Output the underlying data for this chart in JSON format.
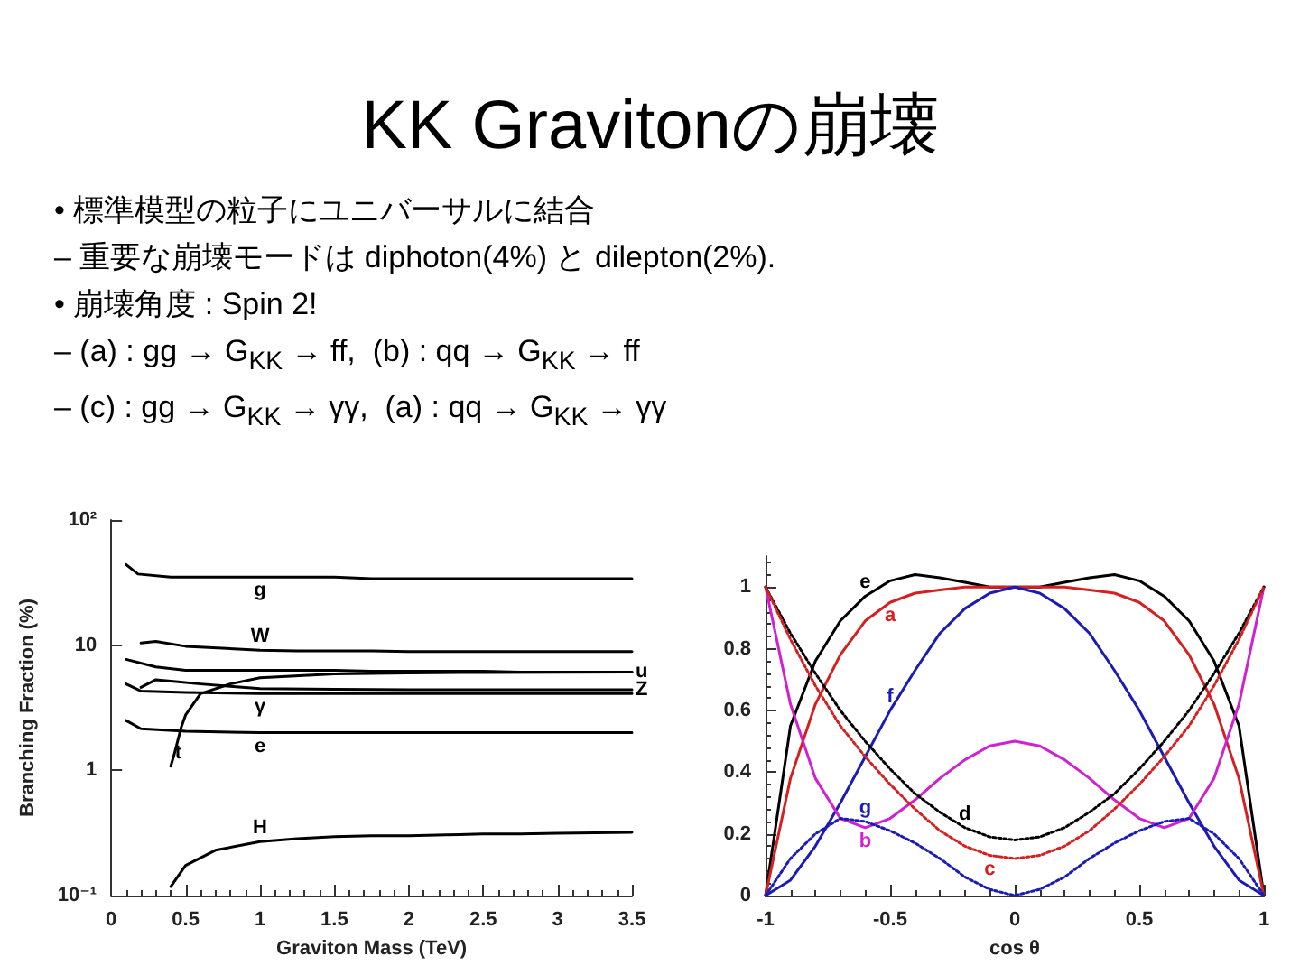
{
  "chart_data": [
    {
      "type": "line",
      "title": "KK Gravitonの崩壊",
      "annotations": [
        "• 標準模型の粒子にユニバーサルに結合",
        "– 重要な崩壊モードは diphoton(4%) と dilepton(2%).",
        "• 崩壊角度 : Spin 2!",
        "– (a) : gg → G$_{KK}$ → ff,  (b) : qq → G$_{KK}$ → ff",
        "– (c) : gg → G$_{KK}$ → γγ,  (a) : qq → G$_{KK}$ → γγ"
      ],
      "xlabel": "Graviton Mass (TeV)",
      "ylabel": "Branching Fraction (%)",
      "log": "y",
      "xlim": [
        0,
        3.5
      ],
      "xticks": [
        0,
        0.5,
        1,
        1.5,
        2,
        2.5,
        3,
        3.5
      ],
      "ylim": [
        0.1,
        100
      ],
      "yticks": [
        {
          "value": 0.1,
          "label": "10⁻¹"
        },
        1,
        10,
        {
          "value": 100,
          "label": "10²"
        }
      ],
      "grid": false,
      "legend": false,
      "marker": "none",
      "series": [
        {
          "name": "g",
          "color": "#000000",
          "x": [
            0.1,
            0.18,
            0.4,
            1,
            1.25,
            1.5,
            1.75,
            2,
            2.25,
            2.5,
            2.75,
            3,
            3.5
          ],
          "values": [
            44,
            37,
            35,
            35,
            35,
            35,
            34,
            34,
            34,
            34,
            34,
            34,
            34
          ]
        },
        {
          "name": "W",
          "color": "#000000",
          "x": [
            0.2,
            0.3,
            0.5,
            1,
            1.25,
            1.5,
            1.75,
            2,
            2.25,
            2.5,
            2.75,
            3,
            3.5
          ],
          "values": [
            10.4,
            10.7,
            9.8,
            9.1,
            9,
            9,
            9,
            8.9,
            8.9,
            8.9,
            8.9,
            8.9,
            8.9
          ]
        },
        {
          "name": "u",
          "color": "#000000",
          "x": [
            0.1,
            0.3,
            0.5,
            1,
            1.25,
            1.5,
            1.75,
            2,
            2.25,
            2.5,
            2.75,
            3,
            3.5
          ],
          "values": [
            7.7,
            6.7,
            6.3,
            6.3,
            6.3,
            6.3,
            6.2,
            6.2,
            6.2,
            6.2,
            6.1,
            6.1,
            6.1
          ]
        },
        {
          "name": "Z",
          "color": "#000000",
          "x": [
            0.2,
            0.3,
            0.45,
            0.6,
            0.8,
            1,
            1.5,
            2,
            2.5,
            2.75,
            3,
            3.25,
            3.5
          ],
          "values": [
            4.6,
            5.3,
            5.1,
            4.9,
            4.7,
            4.5,
            4.45,
            4.4,
            4.4,
            4.4,
            4.4,
            4.4,
            4.4
          ]
        },
        {
          "name": "γ",
          "color": "#000000",
          "x": [
            0.1,
            0.2,
            0.5,
            1,
            1.25,
            1.5,
            1.75,
            2,
            2.25,
            2.5,
            2.75,
            3,
            3.5
          ],
          "values": [
            4.9,
            4.3,
            4.2,
            4.1,
            4.1,
            4.1,
            4.1,
            4.1,
            4.1,
            4.1,
            4.1,
            4.1,
            4.1
          ]
        },
        {
          "name": "e",
          "color": "#000000",
          "x": [
            0.1,
            0.2,
            0.5,
            1,
            1.25,
            1.5,
            1.75,
            2,
            2.25,
            2.5,
            2.75,
            3,
            3.5
          ],
          "values": [
            2.5,
            2.15,
            2.05,
            2,
            2,
            2,
            2,
            2,
            2,
            2,
            2,
            2,
            2
          ]
        },
        {
          "name": "t",
          "color": "#000000",
          "x": [
            0.4,
            0.42,
            0.44,
            0.45,
            0.47,
            0.5,
            0.6,
            0.8,
            1,
            1.5,
            2,
            2.5,
            3.5
          ],
          "values": [
            1.08,
            1.3,
            1.6,
            1.78,
            2.2,
            2.77,
            4.1,
            4.9,
            5.5,
            5.9,
            6,
            6.05,
            6.1
          ]
        },
        {
          "name": "H",
          "color": "#000000",
          "x": [
            0.4,
            0.5,
            0.7,
            1,
            1.25,
            1.5,
            1.75,
            2,
            2.25,
            2.5,
            2.75,
            3,
            3.5
          ],
          "values": [
            0.118,
            0.174,
            0.23,
            0.27,
            0.285,
            0.295,
            0.3,
            0.3,
            0.305,
            0.31,
            0.31,
            0.315,
            0.32
          ]
        }
      ]
    },
    {
      "type": "line",
      "xlabel": "cos θ",
      "x": [
        -1,
        -0.9,
        -0.8,
        -0.7,
        -0.6,
        -0.5,
        -0.4,
        -0.3,
        -0.2,
        -0.1,
        0,
        0.1,
        0.2,
        0.3,
        0.4,
        0.5,
        0.6,
        0.7,
        0.8,
        0.9,
        1
      ],
      "xlim": [
        -1,
        1
      ],
      "xticks": [
        -1,
        -0.5,
        0,
        0.5,
        1
      ],
      "ylim": [
        0,
        1.1
      ],
      "yticks": [
        0,
        0.2,
        0.4,
        0.6,
        0.8,
        1
      ],
      "grid": false,
      "legend": false,
      "marker": "none",
      "series": [
        {
          "name": "e",
          "color": "#000000",
          "line_style": "solid",
          "values": [
            0,
            0.55,
            0.76,
            0.89,
            0.97,
            1.02,
            1.04,
            1.03,
            1.015,
            1,
            1,
            1,
            1.015,
            1.03,
            1.04,
            1.02,
            0.97,
            0.89,
            0.76,
            0.55,
            0
          ]
        },
        {
          "name": "a",
          "color": "#d42020",
          "line_style": "solid",
          "values": [
            0,
            0.38,
            0.62,
            0.78,
            0.89,
            0.95,
            0.98,
            0.99,
            1,
            1,
            1,
            1,
            1,
            0.99,
            0.98,
            0.95,
            0.89,
            0.78,
            0.62,
            0.38,
            0
          ]
        },
        {
          "name": "f",
          "color": "#1c1cb4",
          "line_style": "solid",
          "values": [
            0,
            0.05,
            0.16,
            0.3,
            0.45,
            0.6,
            0.73,
            0.85,
            0.93,
            0.98,
            1,
            0.98,
            0.93,
            0.85,
            0.73,
            0.6,
            0.45,
            0.3,
            0.16,
            0.05,
            0
          ]
        },
        {
          "name": "b",
          "color": "#d020d0",
          "line_style": "solid",
          "values": [
            1,
            0.62,
            0.38,
            0.25,
            0.22,
            0.25,
            0.31,
            0.38,
            0.44,
            0.485,
            0.5,
            0.485,
            0.44,
            0.38,
            0.31,
            0.25,
            0.22,
            0.25,
            0.38,
            0.62,
            1
          ]
        },
        {
          "name": "d",
          "color": "#000000",
          "line_style": "dotted",
          "values": [
            1,
            0.85,
            0.72,
            0.6,
            0.5,
            0.41,
            0.33,
            0.27,
            0.22,
            0.19,
            0.18,
            0.19,
            0.22,
            0.27,
            0.33,
            0.41,
            0.5,
            0.6,
            0.72,
            0.85,
            1
          ]
        },
        {
          "name": "c",
          "color": "#d42020",
          "line_style": "dotted",
          "values": [
            1,
            0.83,
            0.68,
            0.55,
            0.45,
            0.36,
            0.28,
            0.21,
            0.16,
            0.13,
            0.12,
            0.13,
            0.16,
            0.21,
            0.28,
            0.36,
            0.45,
            0.55,
            0.68,
            0.83,
            1
          ]
        },
        {
          "name": "g",
          "color": "#1c1cb4",
          "line_style": "dotted",
          "values": [
            0,
            0.12,
            0.2,
            0.25,
            0.24,
            0.21,
            0.17,
            0.12,
            0.06,
            0.02,
            0,
            0.02,
            0.06,
            0.12,
            0.17,
            0.21,
            0.24,
            0.25,
            0.2,
            0.12,
            0
          ]
        }
      ]
    }
  ]
}
